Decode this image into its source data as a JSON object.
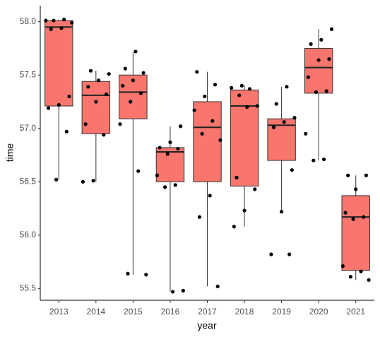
{
  "chart_data": {
    "type": "box",
    "x_label": "year",
    "y_label": "time",
    "categories": [
      "2013",
      "2014",
      "2015",
      "2016",
      "2017",
      "2018",
      "2019",
      "2020",
      "2021"
    ],
    "color": "#F8766D",
    "point_color": "#000000",
    "grid": false,
    "ylim": [
      55.39,
      58.15
    ],
    "yticks": [
      55.5,
      {
        "value": 56,
        "label": "56.0"
      },
      56.5,
      {
        "value": 57,
        "label": "57.0"
      },
      57.5,
      {
        "value": 58,
        "label": "58.0"
      }
    ],
    "low": [
      56.52,
      56.5,
      55.63,
      55.47,
      55.52,
      56.08,
      56.22,
      56.7,
      55.58
    ],
    "q1": [
      57.21,
      56.95,
      57.09,
      56.5,
      56.5,
      56.46,
      56.7,
      57.33,
      55.67
    ],
    "median": [
      57.95,
      57.31,
      57.34,
      56.78,
      57.01,
      57.21,
      57.03,
      57.57,
      56.17
    ],
    "q3": [
      58.01,
      57.44,
      57.5,
      56.82,
      57.25,
      57.36,
      57.09,
      57.75,
      56.37
    ],
    "high": [
      58.02,
      57.54,
      57.72,
      57.02,
      57.53,
      57.4,
      57.39,
      57.93,
      56.56
    ],
    "points": [
      [
        58.01,
        58.02,
        58.01,
        57.99,
        57.94,
        57.93,
        57.3,
        57.22,
        57.19,
        56.97,
        56.52
      ],
      [
        57.54,
        57.51,
        57.45,
        57.39,
        57.32,
        57.25,
        57.04,
        56.94,
        56.51,
        56.5
      ],
      [
        57.72,
        57.56,
        57.52,
        57.45,
        57.4,
        57.33,
        57.25,
        57.04,
        56.6,
        55.64,
        55.63
      ],
      [
        57.02,
        56.87,
        56.82,
        56.81,
        56.76,
        56.56,
        56.47,
        56.45,
        55.48,
        55.47
      ],
      [
        57.53,
        57.41,
        57.3,
        57.17,
        57.07,
        56.95,
        56.89,
        56.37,
        56.17,
        55.52
      ],
      [
        57.4,
        57.38,
        57.37,
        57.31,
        57.21,
        57.2,
        56.54,
        56.43,
        56.23,
        56.08
      ],
      [
        57.39,
        57.23,
        57.1,
        57.06,
        57.01,
        56.61,
        56.22,
        55.82,
        55.82
      ],
      [
        57.93,
        57.83,
        57.79,
        57.65,
        57.64,
        57.48,
        57.35,
        57.34,
        56.95,
        56.71,
        56.7
      ],
      [
        56.56,
        56.56,
        56.43,
        56.21,
        56.17,
        56.15,
        55.71,
        55.66,
        55.61,
        55.58
      ]
    ]
  }
}
